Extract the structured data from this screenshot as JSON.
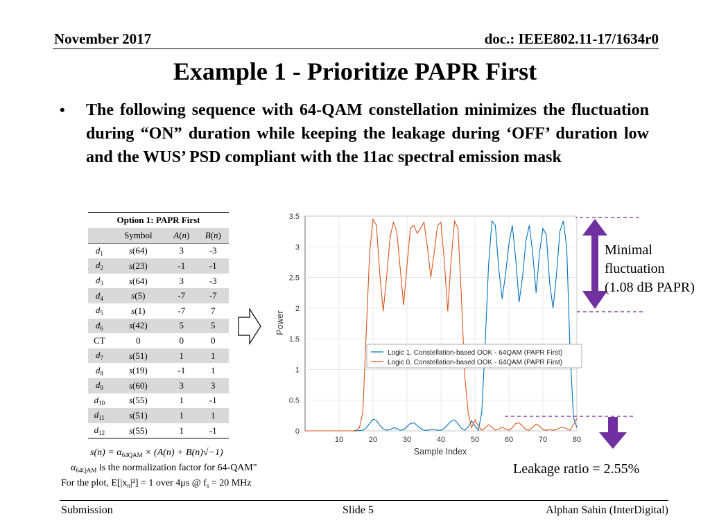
{
  "header": {
    "date": "November 2017",
    "doc": "doc.: IEEE802.11-17/1634r0"
  },
  "title": "Example 1 - Prioritize PAPR First",
  "bullet": "The following sequence with 64-QAM constellation minimizes the fluctuation during “ON” duration while keeping the leakage during ‘OFF’ duration low and the WUS’ PSD compliant with the 11ac spectral emission mask",
  "table": {
    "caption": "Option 1: PAPR First",
    "headers": {
      "symbol": "Symbol",
      "a": "A",
      "b": "B",
      "n": "n"
    },
    "rows": [
      {
        "label": "d",
        "idx": "1",
        "sym": "64",
        "a": "3",
        "b": "-3",
        "shaded": false
      },
      {
        "label": "d",
        "idx": "2",
        "sym": "23",
        "a": "-1",
        "b": "-1",
        "shaded": true
      },
      {
        "label": "d",
        "idx": "3",
        "sym": "64",
        "a": "3",
        "b": "-3",
        "shaded": false
      },
      {
        "label": "d",
        "idx": "4",
        "sym": "5",
        "a": "-7",
        "b": "-7",
        "shaded": true
      },
      {
        "label": "d",
        "idx": "5",
        "sym": "1",
        "a": "-7",
        "b": "7",
        "shaded": false
      },
      {
        "label": "d",
        "idx": "6",
        "sym": "42",
        "a": "5",
        "b": "5",
        "shaded": true
      },
      {
        "label": "CT",
        "idx": "",
        "sym": "0",
        "a": "0",
        "b": "0",
        "shaded": false,
        "plain": true
      },
      {
        "label": "d",
        "idx": "7",
        "sym": "51",
        "a": "1",
        "b": "1",
        "shaded": true
      },
      {
        "label": "d",
        "idx": "8",
        "sym": "19",
        "a": "-1",
        "b": "1",
        "shaded": false
      },
      {
        "label": "d",
        "idx": "9",
        "sym": "60",
        "a": "3",
        "b": "3",
        "shaded": true
      },
      {
        "label": "d",
        "idx": "10",
        "sym": "55",
        "a": "1",
        "b": "-1",
        "shaded": false
      },
      {
        "label": "d",
        "idx": "11",
        "sym": "51",
        "a": "1",
        "b": "1",
        "shaded": true
      },
      {
        "label": "d",
        "idx": "12",
        "sym": "55",
        "a": "1",
        "b": "-1",
        "shaded": false
      }
    ]
  },
  "notes": {
    "formula_lhs": "s(n) = α",
    "formula_sub": "64QAM",
    "formula_rhs": " × (A(n) + B(n)√−1)",
    "alpha": "α",
    "alpha_sub": "64QAM",
    "alpha_text": " is the normalization factor for 64-QAM\"",
    "plot_prefix": "For the plot, E[|x",
    "plot_sub": "n",
    "plot_mid": "|²] =  1 over 4μs @ f",
    "plot_fsub": "s",
    "plot_end": " = 20 MHz"
  },
  "annotations": {
    "minimal": [
      "Minimal",
      "fluctuation",
      "(1.08 dB PAPR)"
    ],
    "leakage": "Leakage ratio = 2.55%",
    "dashed_color": "#8e44ad",
    "arrow_color": "#7030a0"
  },
  "chart_data": {
    "type": "line",
    "xlabel": "Sample Index",
    "ylabel": "Power",
    "xlim": [
      0,
      80
    ],
    "ylim": [
      0,
      3.5
    ],
    "xticks": [
      10,
      20,
      30,
      40,
      50,
      60,
      70,
      80
    ],
    "yticks": [
      0,
      0.5,
      1,
      1.5,
      2,
      2.5,
      3,
      3.5
    ],
    "grid": true,
    "legend_position": "center-right",
    "series": [
      {
        "name": "Logic 1, Constellation-based OOK - 64QAM (PAPR First)",
        "color": "#0072bd",
        "x": [
          0,
          10,
          15,
          17,
          18,
          19,
          20,
          21,
          22,
          23,
          24,
          25,
          26,
          27,
          28,
          29,
          30,
          31,
          32,
          33,
          34,
          35,
          36,
          37,
          38,
          39,
          40,
          41,
          42,
          43,
          44,
          45,
          46,
          47,
          48,
          49,
          50,
          51,
          52,
          53,
          54,
          55,
          56,
          57,
          58,
          59,
          60,
          61,
          62,
          63,
          64,
          65,
          66,
          67,
          68,
          69,
          70,
          71,
          72,
          73,
          74,
          75,
          76,
          77,
          78,
          79,
          80
        ],
        "y": [
          0,
          0,
          0,
          0.01,
          0.05,
          0.12,
          0.19,
          0.17,
          0.09,
          0.03,
          0.01,
          0.02,
          0.05,
          0.04,
          0.01,
          0.02,
          0.07,
          0.12,
          0.13,
          0.09,
          0.04,
          0.01,
          0.01,
          0.02,
          0.02,
          0.01,
          0.01,
          0.04,
          0.1,
          0.16,
          0.18,
          0.12,
          0.04,
          0.01,
          0.06,
          0.16,
          0.08,
          0.01,
          0.3,
          1.4,
          2.7,
          3.42,
          3.35,
          2.65,
          2.15,
          2.55,
          3.05,
          3.35,
          2.8,
          2.1,
          2.5,
          3.1,
          3.35,
          2.9,
          2.25,
          2.9,
          3.3,
          3.2,
          2.4,
          2.0,
          2.55,
          3.25,
          3.42,
          3.0,
          1.3,
          0.22,
          0.05
        ]
      },
      {
        "name": "Logic 0, Constellation-based OOK - 64QAM (PAPR First)",
        "color": "#d95319",
        "x": [
          0,
          10,
          14,
          15,
          16,
          17,
          18,
          19,
          20,
          21,
          22,
          23,
          24,
          25,
          26,
          27,
          28,
          29,
          30,
          31,
          32,
          33,
          34,
          35,
          36,
          37,
          38,
          39,
          40,
          41,
          42,
          43,
          44,
          45,
          46,
          47,
          48,
          49,
          50,
          51,
          52,
          53,
          54,
          55,
          56,
          57,
          58,
          59,
          60,
          61,
          62,
          63,
          64,
          65,
          66,
          67,
          68,
          69,
          70,
          71,
          72,
          73,
          74,
          75,
          76,
          77,
          78,
          79,
          80
        ],
        "y": [
          0,
          0,
          0,
          0.01,
          0.05,
          0.3,
          1.6,
          2.9,
          3.45,
          3.35,
          2.55,
          1.95,
          2.5,
          3.15,
          3.4,
          3.25,
          2.65,
          2.05,
          2.7,
          3.3,
          3.35,
          3.22,
          3.3,
          3.4,
          3.0,
          2.5,
          2.9,
          3.35,
          3.4,
          2.75,
          1.95,
          2.8,
          3.42,
          3.3,
          2.2,
          0.9,
          0.3,
          0.05,
          0.18,
          0.08,
          0.01,
          0.05,
          0.1,
          0.06,
          0.01,
          0.03,
          0.06,
          0.03,
          0.01,
          0.05,
          0.12,
          0.13,
          0.08,
          0.02,
          0.01,
          0.06,
          0.11,
          0.08,
          0.02,
          0.01,
          0.02,
          0.01,
          0.02,
          0.05,
          0.06,
          0.03,
          0.01,
          0.1,
          0.2
        ]
      }
    ]
  },
  "footer": {
    "left": "Submission",
    "mid": "Slide 5",
    "right": "Alphan Sahin (InterDigital)"
  }
}
